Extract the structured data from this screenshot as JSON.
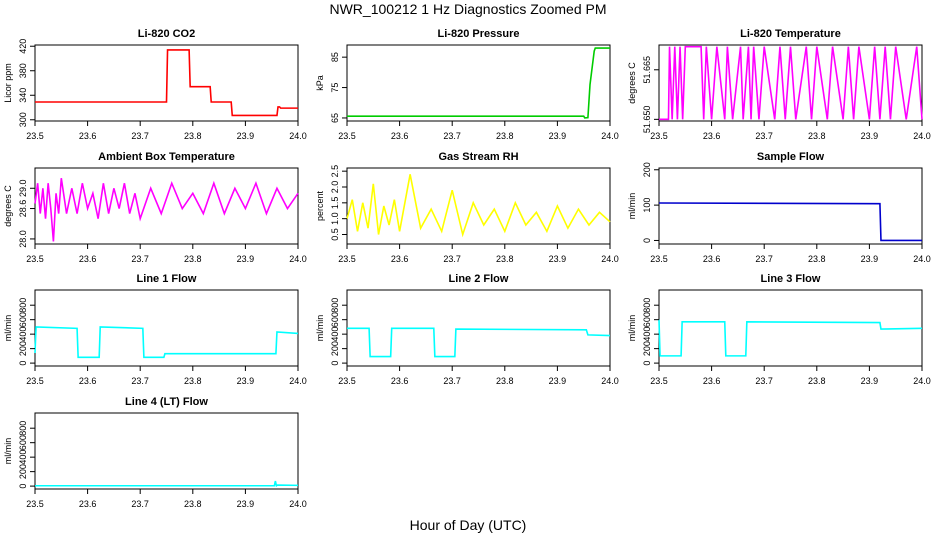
{
  "page": {
    "title": "NWR_100212  1 Hz Diagnostics Zoomed PM",
    "x_axis_title": "Hour of Day (UTC)"
  },
  "chart_data": [
    {
      "type": "line",
      "title": "Li-820 CO2",
      "ylabel": "Licor ppm",
      "color": "#ff0000",
      "xlim": [
        23.5,
        24.0
      ],
      "xticks": [
        23.5,
        23.6,
        23.7,
        23.8,
        23.9,
        24.0
      ],
      "xticklabels": [
        "23.5",
        "23.6",
        "23.7",
        "23.8",
        "23.9",
        "24.0"
      ],
      "ylim": [
        298,
        422
      ],
      "yticks": [
        300,
        340,
        380,
        420
      ],
      "yticklabels": [
        "300",
        "340",
        "380",
        "420"
      ],
      "series": [
        {
          "x": [
            23.5,
            23.75,
            23.752,
            23.793,
            23.795,
            23.833,
            23.835,
            23.873,
            23.875,
            23.96,
            23.962,
            23.965,
            23.967,
            24.0
          ],
          "y": [
            329,
            329,
            414,
            414,
            354,
            354,
            329,
            329,
            307,
            307,
            321,
            321,
            319,
            319
          ]
        }
      ]
    },
    {
      "type": "line",
      "title": "Li-820 Pressure",
      "ylabel": "kPa",
      "color": "#00cc00",
      "xlim": [
        23.5,
        24.0
      ],
      "xticks": [
        23.5,
        23.6,
        23.7,
        23.8,
        23.9,
        24.0
      ],
      "xticklabels": [
        "23.5",
        "23.6",
        "23.7",
        "23.8",
        "23.9",
        "24.0"
      ],
      "ylim": [
        64,
        89
      ],
      "yticks": [
        65,
        75,
        85
      ],
      "yticklabels": [
        "65",
        "75",
        "85"
      ],
      "series": [
        {
          "x": [
            23.5,
            23.95,
            23.952,
            23.958,
            23.962,
            23.97,
            23.972,
            24.0
          ],
          "y": [
            65.6,
            65.6,
            65.0,
            65.1,
            76,
            87,
            88,
            88
          ]
        }
      ]
    },
    {
      "type": "line",
      "title": "Li-820 Temperature",
      "ylabel": "degrees C",
      "color": "#ff00ff",
      "xlim": [
        23.5,
        24.0
      ],
      "xticks": [
        23.5,
        23.6,
        23.7,
        23.8,
        23.9,
        24.0
      ],
      "xticklabels": [
        "23.5",
        "23.6",
        "23.7",
        "23.8",
        "23.9",
        "24.0"
      ],
      "ylim": [
        51.6495,
        51.6725
      ],
      "yticks": [
        51.65,
        51.665
      ],
      "yticklabels": [
        "51.650",
        "51.665"
      ],
      "series": [
        {
          "x": [
            23.5,
            23.518,
            23.52,
            23.525,
            23.53,
            23.535,
            23.54,
            23.545,
            23.55,
            23.58,
            23.585,
            23.59,
            23.6,
            23.61,
            23.625,
            23.63,
            23.64,
            23.655,
            23.66,
            23.67,
            23.675,
            23.68,
            23.69,
            23.7,
            23.72,
            23.73,
            23.74,
            23.75,
            23.76,
            23.78,
            23.79,
            23.8,
            23.82,
            23.83,
            23.85,
            23.86,
            23.87,
            23.88,
            23.9,
            23.91,
            23.92,
            23.93,
            23.94,
            23.95,
            23.97,
            23.99,
            24.0
          ],
          "y": [
            51.65,
            51.65,
            51.672,
            51.65,
            51.672,
            51.65,
            51.672,
            51.65,
            51.672,
            51.672,
            51.65,
            51.672,
            51.65,
            51.672,
            51.65,
            51.672,
            51.65,
            51.672,
            51.65,
            51.672,
            51.65,
            51.672,
            51.65,
            51.672,
            51.65,
            51.672,
            51.65,
            51.672,
            51.65,
            51.672,
            51.65,
            51.672,
            51.65,
            51.672,
            51.65,
            51.672,
            51.65,
            51.672,
            51.65,
            51.672,
            51.65,
            51.672,
            51.65,
            51.672,
            51.65,
            51.672,
            51.65
          ]
        }
      ]
    },
    {
      "type": "line",
      "title": "Ambient Box Temperature",
      "ylabel": "degrees C",
      "color": "#ff00ff",
      "xlim": [
        23.5,
        24.0
      ],
      "xticks": [
        23.5,
        23.6,
        23.7,
        23.8,
        23.9,
        24.0
      ],
      "xticklabels": [
        "23.5",
        "23.6",
        "23.7",
        "23.8",
        "23.9",
        "24.0"
      ],
      "ylim": [
        27.9,
        29.4
      ],
      "yticks": [
        28.0,
        28.6,
        29.0
      ],
      "yticklabels": [
        "28.0",
        "28.6",
        "29.0"
      ],
      "series": [
        {
          "x": [
            23.5,
            23.505,
            23.51,
            23.515,
            23.52,
            23.525,
            23.53,
            23.535,
            23.54,
            23.545,
            23.55,
            23.56,
            23.57,
            23.58,
            23.59,
            23.6,
            23.61,
            23.62,
            23.63,
            23.64,
            23.65,
            23.66,
            23.67,
            23.68,
            23.69,
            23.7,
            23.72,
            23.74,
            23.76,
            23.78,
            23.8,
            23.82,
            23.84,
            23.86,
            23.88,
            23.9,
            23.92,
            23.94,
            23.96,
            23.98,
            24.0
          ],
          "y": [
            28.7,
            29.1,
            28.5,
            29.0,
            28.4,
            29.1,
            28.6,
            27.95,
            28.9,
            28.5,
            29.2,
            28.5,
            29.0,
            28.5,
            29.1,
            28.6,
            28.9,
            28.4,
            29.1,
            28.5,
            29.0,
            28.6,
            29.1,
            28.5,
            28.9,
            28.4,
            29.0,
            28.5,
            29.1,
            28.6,
            28.9,
            28.5,
            29.1,
            28.5,
            29.0,
            28.6,
            29.1,
            28.5,
            29.0,
            28.6,
            28.9
          ]
        }
      ]
    },
    {
      "type": "line",
      "title": "Gas Stream RH",
      "ylabel": "percent",
      "color": "#ffff00",
      "xlim": [
        23.5,
        24.0
      ],
      "xticks": [
        23.5,
        23.6,
        23.7,
        23.8,
        23.9,
        24.0
      ],
      "xticklabels": [
        "23.5",
        "23.6",
        "23.7",
        "23.8",
        "23.9",
        "24.0"
      ],
      "ylim": [
        0.2,
        2.6
      ],
      "yticks": [
        0.5,
        1.0,
        1.5,
        2.0,
        2.5
      ],
      "yticklabels": [
        "0.5",
        "1.0",
        "1.5",
        "2.0",
        "2.5"
      ],
      "series": [
        {
          "x": [
            23.5,
            23.51,
            23.52,
            23.53,
            23.54,
            23.55,
            23.56,
            23.57,
            23.58,
            23.59,
            23.6,
            23.62,
            23.64,
            23.66,
            23.68,
            23.7,
            23.72,
            23.74,
            23.76,
            23.78,
            23.8,
            23.82,
            23.84,
            23.86,
            23.88,
            23.9,
            23.92,
            23.94,
            23.96,
            23.98,
            24.0
          ],
          "y": [
            1.0,
            1.6,
            0.6,
            1.5,
            0.7,
            2.1,
            0.5,
            1.4,
            0.8,
            1.6,
            0.6,
            2.4,
            0.7,
            1.3,
            0.6,
            1.9,
            0.5,
            1.5,
            0.8,
            1.3,
            0.6,
            1.5,
            0.8,
            1.2,
            0.6,
            1.4,
            0.7,
            1.3,
            0.8,
            1.2,
            0.9
          ]
        }
      ]
    },
    {
      "type": "line",
      "title": "Sample Flow",
      "ylabel": "ml/min",
      "color": "#0000cc",
      "xlim": [
        23.5,
        24.0
      ],
      "xticks": [
        23.5,
        23.6,
        23.7,
        23.8,
        23.9,
        24.0
      ],
      "xticklabels": [
        "23.5",
        "23.6",
        "23.7",
        "23.8",
        "23.9",
        "24.0"
      ],
      "ylim": [
        -10,
        205
      ],
      "yticks": [
        0,
        100,
        200
      ],
      "yticklabels": [
        "0",
        "100",
        "200"
      ],
      "series": [
        {
          "x": [
            23.5,
            23.92,
            23.922,
            24.0
          ],
          "y": [
            106,
            104,
            0,
            0
          ]
        }
      ]
    },
    {
      "type": "line",
      "title": "Line 1 Flow",
      "ylabel": "ml/min",
      "color": "#00ffff",
      "xlim": [
        23.5,
        24.0
      ],
      "xticks": [
        23.5,
        23.6,
        23.7,
        23.8,
        23.9,
        24.0
      ],
      "xticklabels": [
        "23.5",
        "23.6",
        "23.7",
        "23.8",
        "23.9",
        "24.0"
      ],
      "ylim": [
        -40,
        1010
      ],
      "yticks": [
        0,
        200,
        400,
        600,
        800
      ],
      "yticklabels": [
        "0",
        "200",
        "400",
        "600",
        "800"
      ],
      "series": [
        {
          "x": [
            23.5,
            23.502,
            23.58,
            23.582,
            23.622,
            23.624,
            23.705,
            23.707,
            23.745,
            23.747,
            23.958,
            23.96,
            24.0
          ],
          "y": [
            140,
            500,
            480,
            80,
            80,
            500,
            480,
            80,
            80,
            130,
            130,
            430,
            410
          ]
        }
      ]
    },
    {
      "type": "line",
      "title": "Line 2 Flow",
      "ylabel": "ml/min",
      "color": "#00ffff",
      "xlim": [
        23.5,
        24.0
      ],
      "xticks": [
        23.5,
        23.6,
        23.7,
        23.8,
        23.9,
        24.0
      ],
      "xticklabels": [
        "23.5",
        "23.6",
        "23.7",
        "23.8",
        "23.9",
        "24.0"
      ],
      "ylim": [
        -40,
        1010
      ],
      "yticks": [
        0,
        200,
        400,
        600,
        800
      ],
      "yticklabels": [
        "0",
        "200",
        "400",
        "600",
        "800"
      ],
      "series": [
        {
          "x": [
            23.5,
            23.542,
            23.544,
            23.583,
            23.585,
            23.665,
            23.667,
            23.705,
            23.707,
            23.955,
            23.958,
            24.0
          ],
          "y": [
            480,
            480,
            90,
            90,
            480,
            480,
            90,
            90,
            470,
            460,
            390,
            380
          ]
        }
      ]
    },
    {
      "type": "line",
      "title": "Line 3 Flow",
      "ylabel": "ml/min",
      "color": "#00ffff",
      "xlim": [
        23.5,
        24.0
      ],
      "xticks": [
        23.5,
        23.6,
        23.7,
        23.8,
        23.9,
        24.0
      ],
      "xticklabels": [
        "23.5",
        "23.6",
        "23.7",
        "23.8",
        "23.9",
        "24.0"
      ],
      "ylim": [
        -40,
        1010
      ],
      "yticks": [
        0,
        200,
        400,
        600,
        800
      ],
      "yticklabels": [
        "0",
        "200",
        "400",
        "600",
        "800"
      ],
      "series": [
        {
          "x": [
            23.5,
            23.502,
            23.542,
            23.544,
            23.625,
            23.627,
            23.665,
            23.667,
            23.92,
            23.922,
            24.0
          ],
          "y": [
            600,
            100,
            100,
            570,
            570,
            100,
            100,
            570,
            560,
            470,
            480
          ]
        }
      ]
    },
    {
      "type": "line",
      "title": "Line 4 (LT) Flow",
      "ylabel": "ml/min",
      "color": "#00ffff",
      "xlim": [
        23.5,
        24.0
      ],
      "xticks": [
        23.5,
        23.6,
        23.7,
        23.8,
        23.9,
        24.0
      ],
      "xticklabels": [
        "23.5",
        "23.6",
        "23.7",
        "23.8",
        "23.9",
        "24.0"
      ],
      "ylim": [
        -40,
        1010
      ],
      "yticks": [
        0,
        200,
        400,
        600,
        800
      ],
      "yticklabels": [
        "0",
        "200",
        "400",
        "600",
        "800"
      ],
      "series": [
        {
          "x": [
            23.5,
            23.955,
            23.957,
            23.959,
            23.961,
            24.0
          ],
          "y": [
            5,
            5,
            70,
            5,
            15,
            10
          ]
        }
      ]
    }
  ]
}
